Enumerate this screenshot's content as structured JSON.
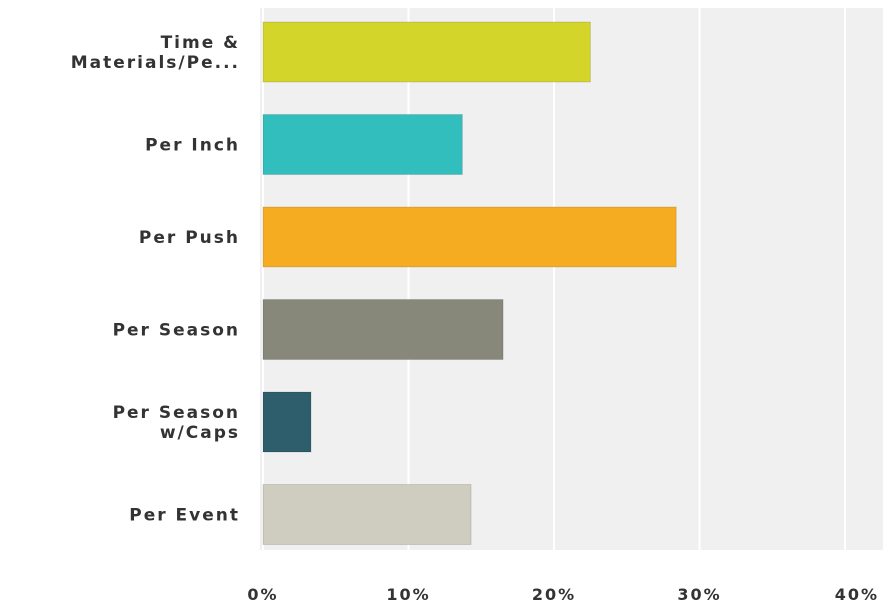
{
  "chart_data": {
    "type": "bar",
    "orientation": "horizontal",
    "categories": [
      [
        "Time &",
        "Materials/Pe..."
      ],
      [
        "Per Inch"
      ],
      [
        "Per Push"
      ],
      [
        "Per Season"
      ],
      [
        "Per Season",
        "w/Caps"
      ],
      [
        "Per Event"
      ]
    ],
    "values": [
      22.5,
      13.7,
      28.4,
      16.5,
      3.3,
      14.3
    ],
    "colors": [
      "#d3d52a",
      "#33bebe",
      "#f5ac20",
      "#87877a",
      "#2e5d6b",
      "#cfcdbf"
    ],
    "xlim": [
      0,
      40
    ],
    "xticks": [
      0,
      10,
      20,
      30,
      40
    ],
    "xtick_labels": [
      "0%",
      "10%",
      "20%",
      "30%",
      "40%"
    ],
    "grid": true,
    "title": "",
    "xlabel": "",
    "ylabel": ""
  }
}
